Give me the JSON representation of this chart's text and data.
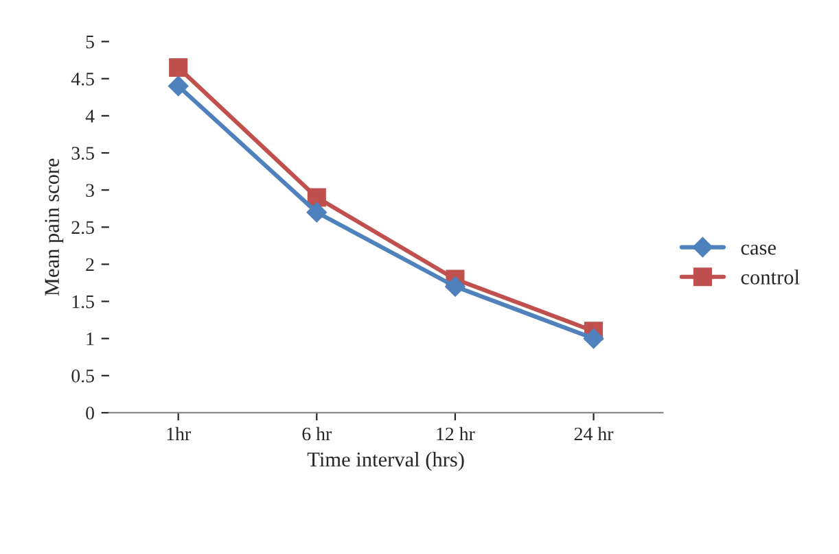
{
  "chart_data": {
    "type": "line",
    "xlabel": "Time interval (hrs)",
    "ylabel": "Mean pain score",
    "categories": [
      "1hr",
      "6 hr",
      "12 hr",
      "24 hr"
    ],
    "series": [
      {
        "name": "case",
        "color": "#4f81bd",
        "marker": "diamond",
        "values": [
          4.4,
          2.7,
          1.7,
          1.0
        ]
      },
      {
        "name": "control",
        "color": "#c0504d",
        "marker": "square",
        "values": [
          4.65,
          2.9,
          1.8,
          1.1
        ]
      }
    ],
    "ylim": [
      0,
      5
    ],
    "yticks": [
      0,
      0.5,
      1,
      1.5,
      2,
      2.5,
      3,
      3.5,
      4,
      4.5,
      5
    ],
    "grid": false,
    "legend": "right"
  }
}
